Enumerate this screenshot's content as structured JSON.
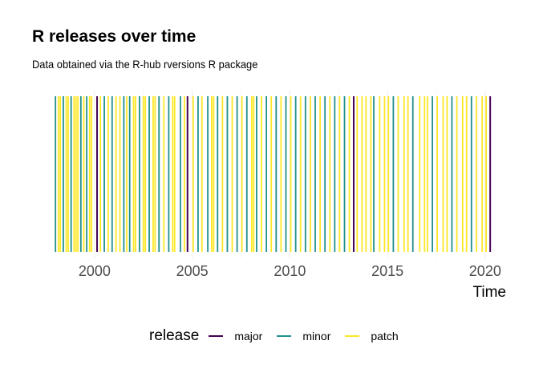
{
  "chart_data": {
    "type": "bar",
    "title": "R releases over time",
    "subtitle": "Data obtained via the R-hub rversions R package",
    "xlabel": "Time",
    "ylabel": "",
    "xlim": [
      1997.5,
      2020.5
    ],
    "x_ticks": [
      "2000",
      "2005",
      "2010",
      "2015",
      "2020"
    ],
    "grid": true,
    "legend": {
      "title": "release",
      "placement": "bottom",
      "entries": [
        {
          "name": "major",
          "color": "#440154"
        },
        {
          "name": "minor",
          "color": "#21908C"
        },
        {
          "name": "patch",
          "color": "#FDE725"
        }
      ]
    },
    "series": [
      {
        "name": "major",
        "color": "#440154",
        "x": [
          2000.13,
          2004.76,
          2013.27,
          2020.26
        ]
      },
      {
        "name": "minor",
        "color": "#21908C",
        "x": [
          1998.0,
          1998.4,
          1998.8,
          1999.3,
          1999.6,
          2000.5,
          2000.9,
          2001.5,
          2001.8,
          2002.3,
          2002.8,
          2003.3,
          2003.8,
          2004.4,
          2005.3,
          2005.8,
          2006.3,
          2006.8,
          2007.3,
          2007.8,
          2008.3,
          2008.8,
          2009.3,
          2009.8,
          2010.3,
          2010.8,
          2011.3,
          2011.8,
          2012.3,
          2012.8,
          2014.3,
          2015.3,
          2016.3,
          2017.3,
          2018.3,
          2019.3
        ]
      },
      {
        "name": "patch",
        "color": "#FDE725",
        "x": [
          1998.15,
          1998.25,
          1998.55,
          1998.65,
          1998.95,
          1999.05,
          1999.15,
          1999.45,
          1999.75,
          1999.85,
          2000.3,
          2000.7,
          2001.1,
          2001.3,
          2001.65,
          2002.0,
          2002.1,
          2002.5,
          2002.6,
          2003.0,
          2003.1,
          2003.55,
          2004.0,
          2004.1,
          2004.6,
          2005.05,
          2005.5,
          2006.0,
          2006.1,
          2006.55,
          2007.05,
          2007.55,
          2008.05,
          2008.15,
          2008.55,
          2009.05,
          2009.55,
          2010.05,
          2010.55,
          2011.05,
          2011.55,
          2012.05,
          2012.55,
          2013.05,
          2013.45,
          2013.7,
          2013.9,
          2014.15,
          2014.6,
          2014.85,
          2015.05,
          2015.55,
          2015.85,
          2016.05,
          2016.65,
          2016.9,
          2017.05,
          2017.55,
          2017.85,
          2018.05,
          2018.55,
          2018.85,
          2019.05,
          2019.55,
          2019.85,
          2020.05
        ]
      }
    ]
  }
}
